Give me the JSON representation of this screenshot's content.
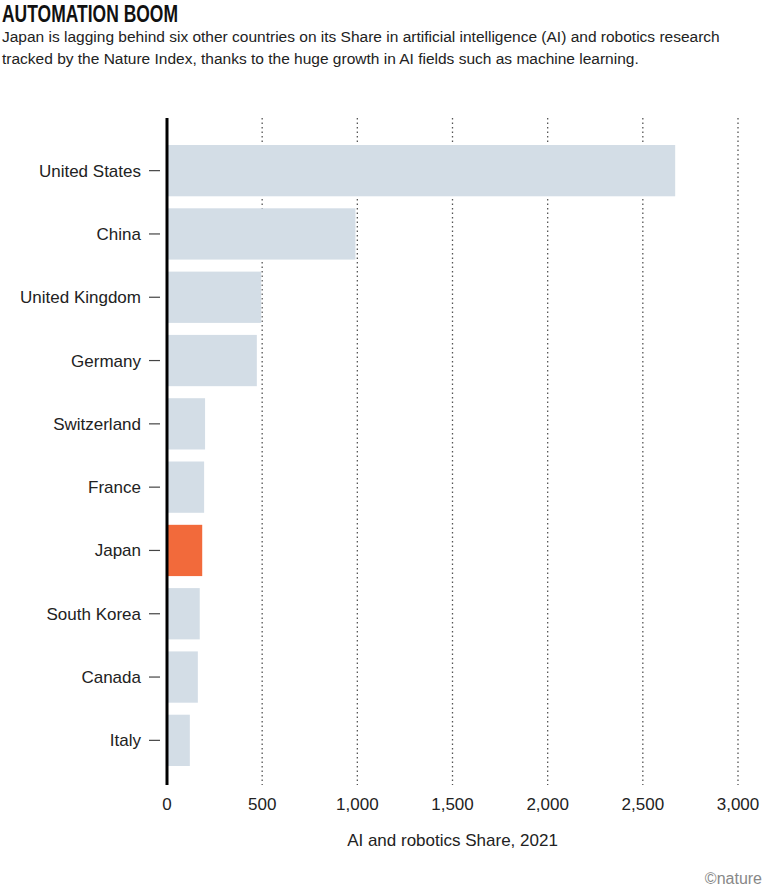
{
  "chart_data": {
    "type": "bar",
    "orientation": "horizontal",
    "title": "AUTOMATION BOOM",
    "subtitle": "Japan is lagging behind six other countries on its Share in artificial intelligence (AI) and robotics research tracked by the Nature Index, thanks to the huge growth in AI fields such as machine learning.",
    "x_label": "AI and robotics Share, 2021",
    "source": "©nature",
    "categories": [
      "United States",
      "China",
      "United Kingdom",
      "Germany",
      "Switzerland",
      "France",
      "Japan",
      "South Korea",
      "Canada",
      "Italy"
    ],
    "values": [
      2670,
      990,
      495,
      472,
      200,
      195,
      185,
      172,
      162,
      120
    ],
    "colors": [
      "#d3dde6",
      "#d3dde6",
      "#d3dde6",
      "#d3dde6",
      "#d3dde6",
      "#d3dde6",
      "#f26a3b",
      "#d3dde6",
      "#d3dde6",
      "#d3dde6"
    ],
    "xlim": [
      0,
      3000
    ],
    "xticks": [
      0,
      500,
      {
        "value": 1000,
        "label": "1,000"
      },
      {
        "value": 1500,
        "label": "1,500"
      },
      {
        "value": 2000,
        "label": "2,000"
      },
      {
        "value": 2500,
        "label": "2,500"
      },
      {
        "value": 3000,
        "label": "3,000"
      }
    ],
    "grid": true
  }
}
